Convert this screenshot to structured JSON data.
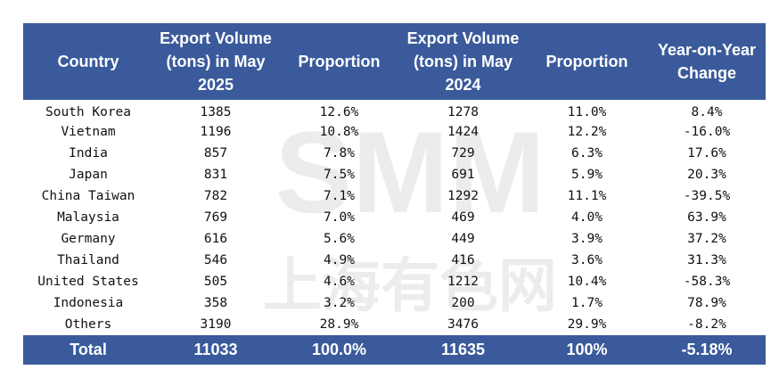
{
  "table": {
    "headers": [
      "Country",
      "Export Volume (tons) in May 2025",
      "Proportion",
      "Export Volume (tons) in May 2024",
      "Proportion",
      "Year-on-Year Change"
    ],
    "rows": [
      {
        "country": "South Korea",
        "vol_2025": "1385",
        "prop_2025": "12.6%",
        "vol_2024": "1278",
        "prop_2024": "11.0%",
        "yoy": "8.4%"
      },
      {
        "country": "Vietnam",
        "vol_2025": "1196",
        "prop_2025": "10.8%",
        "vol_2024": "1424",
        "prop_2024": "12.2%",
        "yoy": "-16.0%"
      },
      {
        "country": "India",
        "vol_2025": "857",
        "prop_2025": "7.8%",
        "vol_2024": "729",
        "prop_2024": "6.3%",
        "yoy": "17.6%"
      },
      {
        "country": "Japan",
        "vol_2025": "831",
        "prop_2025": "7.5%",
        "vol_2024": "691",
        "prop_2024": "5.9%",
        "yoy": "20.3%"
      },
      {
        "country": "China Taiwan",
        "vol_2025": "782",
        "prop_2025": "7.1%",
        "vol_2024": "1292",
        "prop_2024": "11.1%",
        "yoy": "-39.5%"
      },
      {
        "country": "Malaysia",
        "vol_2025": "769",
        "prop_2025": "7.0%",
        "vol_2024": "469",
        "prop_2024": "4.0%",
        "yoy": "63.9%"
      },
      {
        "country": "Germany",
        "vol_2025": "616",
        "prop_2025": "5.6%",
        "vol_2024": "449",
        "prop_2024": "3.9%",
        "yoy": "37.2%"
      },
      {
        "country": "Thailand",
        "vol_2025": "546",
        "prop_2025": "4.9%",
        "vol_2024": "416",
        "prop_2024": "3.6%",
        "yoy": "31.3%"
      },
      {
        "country": "United States",
        "vol_2025": "505",
        "prop_2025": "4.6%",
        "vol_2024": "1212",
        "prop_2024": "10.4%",
        "yoy": "-58.3%"
      },
      {
        "country": "Indonesia",
        "vol_2025": "358",
        "prop_2025": "3.2%",
        "vol_2024": "200",
        "prop_2024": "1.7%",
        "yoy": "78.9%"
      },
      {
        "country": "Others",
        "vol_2025": "3190",
        "prop_2025": "28.9%",
        "vol_2024": "3476",
        "prop_2024": "29.9%",
        "yoy": "-8.2%"
      }
    ],
    "total": {
      "country": "Total",
      "vol_2025": "11033",
      "prop_2025": "100.0%",
      "vol_2024": "11635",
      "prop_2024": "100%",
      "yoy": "-5.18%"
    }
  },
  "watermark": {
    "logo_text": "SMM",
    "cn_text": "上海有色网"
  },
  "colors": {
    "header_bg": "#3a5a9b",
    "header_text": "#ffffff",
    "body_text": "#111111"
  }
}
